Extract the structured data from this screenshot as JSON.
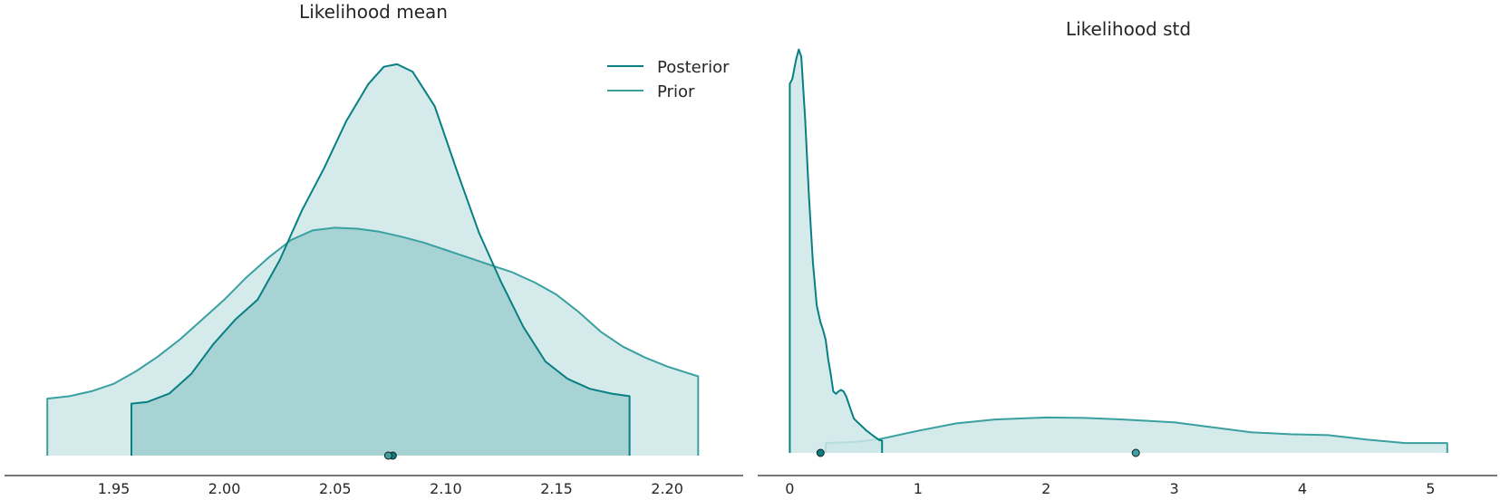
{
  "colors": {
    "posterior": "#087f83",
    "prior": "#3aa0a0",
    "fill": "#cde6e8",
    "fill_dark": "#a3d0d1",
    "axis": "#262626"
  },
  "legend": {
    "placement": "top-right",
    "items": [
      {
        "label": "Posterior",
        "color": "#087f83"
      },
      {
        "label": "Prior",
        "color": "#3aa0a0"
      }
    ]
  },
  "chart_data": [
    {
      "type": "area",
      "title": "Likelihood mean",
      "xlabel": "",
      "ylabel": "",
      "xlim": [
        1.915,
        2.22
      ],
      "ylim": [
        0,
        8.1
      ],
      "x_ticks": [
        1.95,
        2.0,
        2.05,
        2.1,
        2.15,
        2.2
      ],
      "x_tick_labels": [
        "1.95",
        "2.00",
        "2.05",
        "2.10",
        "2.15",
        "2.20"
      ],
      "grid": false,
      "series": [
        {
          "name": "Posterior",
          "hdi": [
            1.958,
            2.183
          ],
          "point_estimate": 2.076,
          "x": [
            1.958,
            1.965,
            1.975,
            1.985,
            1.995,
            2.005,
            2.015,
            2.025,
            2.035,
            2.045,
            2.055,
            2.065,
            2.072,
            2.078,
            2.085,
            2.095,
            2.105,
            2.115,
            2.125,
            2.135,
            2.145,
            2.155,
            2.165,
            2.175,
            2.183
          ],
          "y": [
            1.05,
            1.08,
            1.25,
            1.65,
            2.25,
            2.75,
            3.15,
            3.95,
            4.95,
            5.8,
            6.75,
            7.5,
            7.85,
            7.9,
            7.75,
            7.05,
            5.75,
            4.5,
            3.5,
            2.6,
            1.9,
            1.55,
            1.35,
            1.25,
            1.2
          ]
        },
        {
          "name": "Prior",
          "hdi": [
            1.92,
            2.214
          ],
          "point_estimate": 2.074,
          "x": [
            1.92,
            1.93,
            1.94,
            1.95,
            1.96,
            1.97,
            1.98,
            1.99,
            2.0,
            2.01,
            2.02,
            2.03,
            2.04,
            2.05,
            2.06,
            2.07,
            2.08,
            2.09,
            2.1,
            2.11,
            2.12,
            2.13,
            2.14,
            2.15,
            2.16,
            2.17,
            2.18,
            2.19,
            2.2,
            2.214
          ],
          "y": [
            1.15,
            1.2,
            1.3,
            1.45,
            1.7,
            2.0,
            2.35,
            2.75,
            3.15,
            3.6,
            4.0,
            4.35,
            4.55,
            4.6,
            4.58,
            4.52,
            4.42,
            4.3,
            4.15,
            4.0,
            3.85,
            3.7,
            3.5,
            3.25,
            2.9,
            2.5,
            2.2,
            1.98,
            1.8,
            1.6
          ]
        }
      ]
    },
    {
      "type": "area",
      "title": "Likelihood std",
      "xlabel": "",
      "ylabel": "",
      "xlim": [
        -0.25,
        5.4
      ],
      "ylim": [
        0,
        8.1
      ],
      "x_ticks": [
        0,
        1,
        2,
        3,
        4,
        5
      ],
      "x_tick_labels": [
        "0",
        "1",
        "2",
        "3",
        "4",
        "5"
      ],
      "grid": false,
      "series": [
        {
          "name": "Posterior",
          "hdi": [
            0.0,
            0.72
          ],
          "point_estimate": 0.24,
          "x": [
            0.0,
            0.02,
            0.05,
            0.07,
            0.09,
            0.12,
            0.15,
            0.18,
            0.21,
            0.24,
            0.26,
            0.28,
            0.3,
            0.32,
            0.34,
            0.36,
            0.38,
            0.4,
            0.42,
            0.44,
            0.46,
            0.48,
            0.5,
            0.53,
            0.56,
            0.6,
            0.65,
            0.7,
            0.72
          ],
          "y": [
            7.5,
            7.6,
            8.0,
            8.2,
            8.05,
            6.8,
            5.2,
            3.9,
            3.0,
            2.65,
            2.5,
            2.3,
            1.9,
            1.6,
            1.25,
            1.2,
            1.25,
            1.28,
            1.25,
            1.15,
            1.0,
            0.85,
            0.7,
            0.62,
            0.55,
            0.45,
            0.35,
            0.26,
            0.25
          ]
        },
        {
          "name": "Prior",
          "hdi": [
            0.28,
            5.13
          ],
          "point_estimate": 2.7,
          "x": [
            0.28,
            0.5,
            0.7,
            1.0,
            1.3,
            1.6,
            2.0,
            2.3,
            2.6,
            3.0,
            3.3,
            3.6,
            3.9,
            4.2,
            4.5,
            4.8,
            5.13
          ],
          "y": [
            0.2,
            0.22,
            0.28,
            0.45,
            0.6,
            0.68,
            0.72,
            0.71,
            0.68,
            0.62,
            0.52,
            0.42,
            0.38,
            0.36,
            0.27,
            0.2,
            0.2
          ]
        }
      ]
    }
  ]
}
